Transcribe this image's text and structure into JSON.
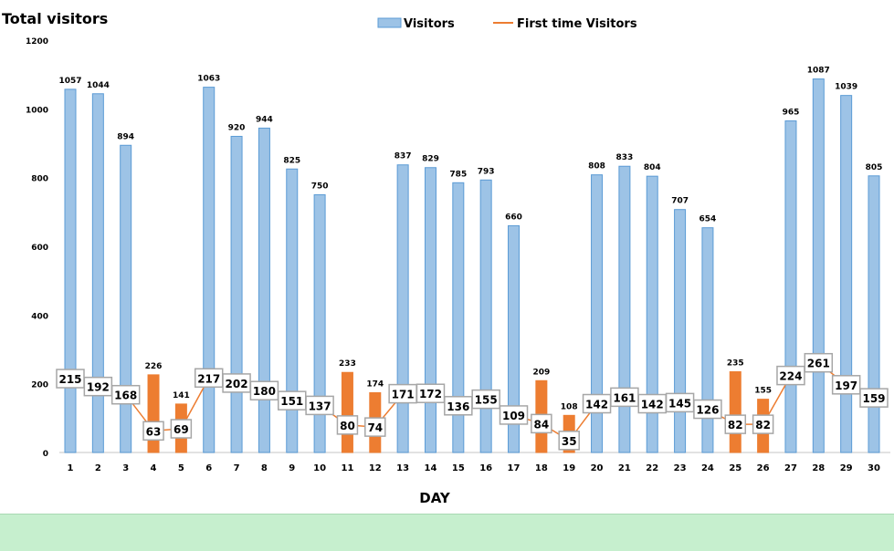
{
  "chart_data": {
    "type": "bar",
    "title": "Total visitors",
    "xlabel": "DAY",
    "ylabel": "",
    "ylim": [
      0,
      1200
    ],
    "yticks": [
      0,
      200,
      400,
      600,
      800,
      1000,
      1200
    ],
    "grid": false,
    "legend_position": "top-center",
    "categories": [
      "1",
      "2",
      "3",
      "4",
      "5",
      "6",
      "7",
      "8",
      "9",
      "10",
      "11",
      "12",
      "13",
      "14",
      "15",
      "16",
      "17",
      "18",
      "19",
      "20",
      "21",
      "22",
      "23",
      "24",
      "25",
      "26",
      "27",
      "28",
      "29",
      "30"
    ],
    "series": [
      {
        "name": "Visitors",
        "kind": "bar",
        "values": [
          1057,
          1044,
          894,
          226,
          141,
          1063,
          920,
          944,
          825,
          750,
          233,
          174,
          837,
          829,
          785,
          793,
          660,
          209,
          108,
          808,
          833,
          804,
          707,
          654,
          235,
          155,
          965,
          1087,
          1039,
          805
        ],
        "highlighted_days": [
          "4",
          "5",
          "11",
          "12",
          "18",
          "19",
          "25",
          "26"
        ]
      },
      {
        "name": "First time Visitors",
        "kind": "line",
        "values": [
          215,
          192,
          168,
          63,
          69,
          217,
          202,
          180,
          151,
          137,
          80,
          74,
          171,
          172,
          136,
          155,
          109,
          84,
          35,
          142,
          161,
          142,
          145,
          126,
          82,
          82,
          224,
          261,
          197,
          159
        ]
      }
    ],
    "colors": {
      "bar": "#9dc3e6",
      "bar_border": "#5b9bd5",
      "highlight_bar": "#ed7d31",
      "line": "#ed7d31"
    }
  }
}
